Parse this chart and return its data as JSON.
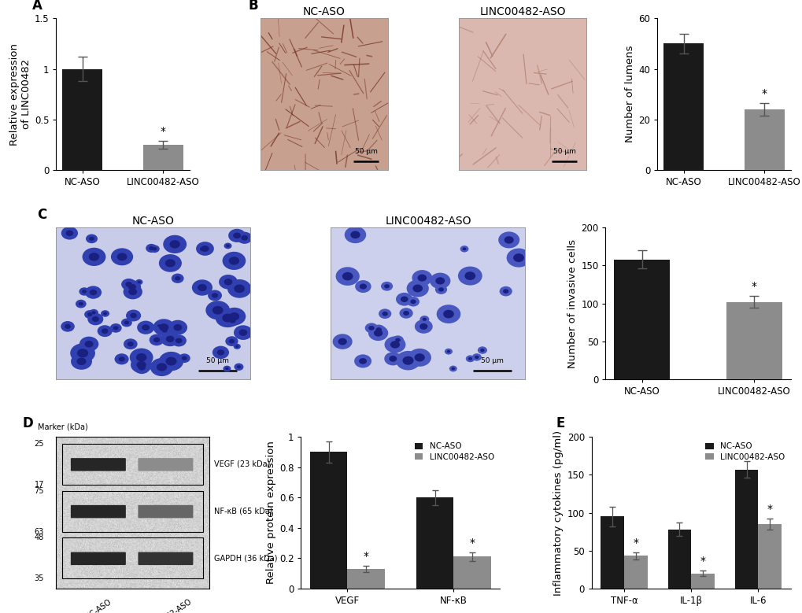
{
  "panel_A": {
    "categories": [
      "NC-ASO",
      "LINC00482-ASO"
    ],
    "values": [
      1.0,
      0.25
    ],
    "errors": [
      0.12,
      0.04
    ],
    "colors": [
      "#1a1a1a",
      "#8c8c8c"
    ],
    "ylabel": "Relative expression\nof LINC00482",
    "ylim": [
      0,
      1.5
    ],
    "yticks": [
      0.0,
      0.5,
      1.0,
      1.5
    ],
    "star_index": 1
  },
  "panel_B_bar": {
    "categories": [
      "NC-ASO",
      "LINC00482-ASO"
    ],
    "values": [
      50,
      24
    ],
    "errors": [
      4,
      2.5
    ],
    "colors": [
      "#1a1a1a",
      "#8c8c8c"
    ],
    "ylabel": "Number of lumens",
    "ylim": [
      0,
      60
    ],
    "yticks": [
      0,
      20,
      40,
      60
    ],
    "star_index": 1
  },
  "panel_C_bar": {
    "categories": [
      "NC-ASO",
      "LINC00482-ASO"
    ],
    "values": [
      158,
      102
    ],
    "errors": [
      12,
      8
    ],
    "colors": [
      "#1a1a1a",
      "#8c8c8c"
    ],
    "ylabel": "Number of invasive cells",
    "ylim": [
      0,
      200
    ],
    "yticks": [
      0,
      50,
      100,
      150,
      200
    ],
    "star_index": 1
  },
  "panel_D_bar": {
    "groups": [
      "VEGF",
      "NF-κB"
    ],
    "nc_aso_values": [
      0.9,
      0.6
    ],
    "linc_aso_values": [
      0.13,
      0.21
    ],
    "nc_aso_errors": [
      0.07,
      0.05
    ],
    "linc_aso_errors": [
      0.02,
      0.03
    ],
    "colors": [
      "#1a1a1a",
      "#8c8c8c"
    ],
    "ylabel": "Relative protein expression",
    "ylim": [
      0,
      1.0
    ],
    "yticks": [
      0.0,
      0.2,
      0.4,
      0.6,
      0.8,
      1.0
    ],
    "legend_labels": [
      "NC-ASO",
      "LINC00482-ASO"
    ],
    "star_indices": [
      1,
      1
    ]
  },
  "panel_E_bar": {
    "groups": [
      "TNF-α",
      "IL-1β",
      "IL-6"
    ],
    "nc_aso_values": [
      95,
      78,
      157
    ],
    "linc_aso_values": [
      43,
      20,
      85
    ],
    "nc_aso_errors": [
      13,
      9,
      11
    ],
    "linc_aso_errors": [
      5,
      4,
      7
    ],
    "colors": [
      "#1a1a1a",
      "#8c8c8c"
    ],
    "ylabel": "Inflammatory cytokines (pg/ml)",
    "ylim": [
      0,
      200
    ],
    "yticks": [
      0,
      50,
      100,
      150,
      200
    ],
    "legend_labels": [
      "NC-ASO",
      "LINC00482-ASO"
    ],
    "star_indices": [
      1,
      1,
      1
    ]
  },
  "wb_bg": "#d8d8d8",
  "wb_band_dark": "#111111",
  "wb_band_light_vegf": "#aaaaaa",
  "wb_band_nfkb": "#444444",
  "wb_band_gapdh": "#333333",
  "label_fontsize": 12,
  "tick_fontsize": 8.5,
  "axis_label_fontsize": 9.5,
  "star_fontsize": 10,
  "bar_width": 0.5
}
